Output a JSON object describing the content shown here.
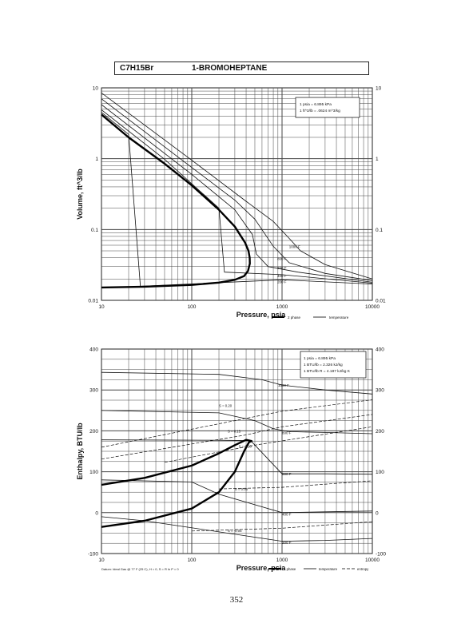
{
  "header": {
    "formula": "C7H15Br",
    "name": "1-BROMOHEPTANE"
  },
  "page_number": "352",
  "chart_data": [
    {
      "type": "line",
      "chart_id": "volume",
      "xlabel": "Pressure,  psia",
      "ylabel": "Volume, ft^3/lb",
      "xscale": "log",
      "yscale": "log",
      "xlim": [
        10,
        10000
      ],
      "ylim": [
        0.01,
        10
      ],
      "grid": true,
      "x_ticks": [
        "10",
        "100",
        "1000",
        "10000"
      ],
      "y_ticks": [
        "0.01",
        "0.1",
        "1",
        "10"
      ],
      "info_box": [
        "1 psia = 6.895 kPa",
        "1 ft^3/lb = .0624 m^3/kg"
      ],
      "legend": {
        "placement": "bottom-right",
        "items": [
          "2 phase",
          "temperature"
        ]
      },
      "dome": [
        [
          10,
          0.0152
        ],
        [
          30,
          0.0156
        ],
        [
          100,
          0.0165
        ],
        [
          200,
          0.0178
        ],
        [
          300,
          0.0195
        ],
        [
          380,
          0.022
        ],
        [
          420,
          0.026
        ],
        [
          440,
          0.033
        ],
        [
          438,
          0.04
        ],
        [
          425,
          0.05
        ],
        [
          390,
          0.065
        ],
        [
          300,
          0.11
        ],
        [
          200,
          0.19
        ],
        [
          100,
          0.42
        ],
        [
          50,
          0.85
        ],
        [
          20,
          2.0
        ],
        [
          10,
          4.2
        ]
      ],
      "isotherms": [
        {
          "name": "1000 F",
          "points": [
            [
              10,
              8.5
            ],
            [
              100,
              0.95
            ],
            [
              400,
              0.25
            ],
            [
              800,
              0.13
            ],
            [
              1200,
              0.075
            ],
            [
              1600,
              0.05
            ],
            [
              3000,
              0.032
            ],
            [
              10000,
              0.02
            ]
          ]
        },
        {
          "name": "800 F",
          "points": [
            [
              10,
              7.0
            ],
            [
              100,
              0.75
            ],
            [
              300,
              0.26
            ],
            [
              500,
              0.14
            ],
            [
              800,
              0.058
            ],
            [
              1200,
              0.034
            ],
            [
              3000,
              0.024
            ],
            [
              10000,
              0.019
            ]
          ]
        },
        {
          "name": "600 F",
          "points": [
            [
              10,
              5.8
            ],
            [
              100,
              0.6
            ],
            [
              300,
              0.19
            ],
            [
              470,
              0.085
            ],
            [
              520,
              0.045
            ],
            [
              700,
              0.03
            ],
            [
              1500,
              0.025
            ],
            [
              10000,
              0.018
            ]
          ]
        },
        {
          "name": "400 F",
          "points": [
            [
              10,
              4.9
            ],
            [
              50,
              0.98
            ],
            [
              200,
              0.2
            ],
            [
              230,
              0.025
            ],
            [
              1000,
              0.023
            ],
            [
              10000,
              0.0175
            ]
          ]
        },
        {
          "name": "200 F",
          "points": [
            [
              10,
              4.5
            ],
            [
              20,
              2.2
            ],
            [
              27,
              0.0158
            ],
            [
              1000,
              0.0195
            ],
            [
              10000,
              0.017
            ]
          ]
        }
      ]
    },
    {
      "type": "line",
      "chart_id": "enthalpy",
      "xlabel": "Pressure,  psia",
      "ylabel": "Enthalpy, BTU/lb",
      "xscale": "log",
      "xlim": [
        10,
        10000
      ],
      "ylim": [
        -100,
        400
      ],
      "grid": true,
      "x_ticks": [
        "10",
        "100",
        "1000",
        "10000"
      ],
      "y_ticks": [
        "-100",
        "0",
        "100",
        "200",
        "300",
        "400"
      ],
      "info_box": [
        "1 psia = 6.895 kPa",
        "1 BTU/lb = 2.326 kJ/kg",
        "1 BTU/lb R = 4.187 kJ/kg K"
      ],
      "datum_note": "Datum: Ideal Gas @ 77 F (25 C), H = 0, S = R ln P = 0",
      "legend": {
        "placement": "bottom-right",
        "items": [
          "2 phase",
          "temperature",
          "entropy"
        ]
      },
      "dome": [
        [
          10,
          -35
        ],
        [
          30,
          -20
        ],
        [
          100,
          10
        ],
        [
          200,
          50
        ],
        [
          300,
          100
        ],
        [
          380,
          150
        ],
        [
          430,
          172
        ],
        [
          460,
          175
        ],
        [
          400,
          178
        ],
        [
          300,
          165
        ],
        [
          200,
          145
        ],
        [
          100,
          115
        ],
        [
          30,
          85
        ],
        [
          10,
          68
        ]
      ],
      "isotherms": [
        {
          "name": "1000 F",
          "points": [
            [
              10,
              343
            ],
            [
              200,
              338
            ],
            [
              600,
              325
            ],
            [
              1000,
              312
            ],
            [
              3000,
              300
            ],
            [
              10000,
              290
            ]
          ]
        },
        {
          "name": "800 F",
          "points": [
            [
              10,
              250
            ],
            [
              200,
              244
            ],
            [
              500,
              225
            ],
            [
              800,
              205
            ],
            [
              1200,
              198
            ],
            [
              3000,
              196
            ],
            [
              10000,
              193
            ]
          ]
        },
        {
          "name": "600 F",
          "points": [
            [
              10,
              178
            ],
            [
              200,
              177
            ],
            [
              450,
              176
            ],
            [
              1000,
              95
            ],
            [
              3000,
              95
            ],
            [
              10000,
              94
            ]
          ]
        },
        {
          "name": "400 F",
          "points": [
            [
              10,
              80
            ],
            [
              100,
              75
            ],
            [
              200,
              45
            ],
            [
              1000,
              0
            ],
            [
              3000,
              2
            ],
            [
              10000,
              4
            ]
          ]
        },
        {
          "name": "200 F",
          "points": [
            [
              10,
              -10
            ],
            [
              30,
              -20
            ],
            [
              1000,
              -70
            ],
            [
              3000,
              -68
            ],
            [
              10000,
              -63
            ]
          ]
        }
      ],
      "entropy_lines": [
        {
          "name": "S = 0.20",
          "points": [
            [
              10,
              160
            ],
            [
              300,
              225
            ],
            [
              1000,
              248
            ],
            [
              10000,
              276
            ]
          ]
        },
        {
          "name": "S = 0.15",
          "points": [
            [
              10,
              131
            ],
            [
              400,
              190
            ],
            [
              1000,
              210
            ],
            [
              10000,
              240
            ]
          ]
        },
        {
          "name": "S = 0.10",
          "points": [
            [
              50,
              123
            ],
            [
              500,
              165
            ],
            [
              10000,
              210
            ]
          ]
        },
        {
          "name": "S = 0.05",
          "points": [
            [
              200,
              58
            ],
            [
              1000,
              62
            ],
            [
              10000,
              78
            ]
          ]
        },
        {
          "name": "S = -0.05",
          "points": [
            [
              100,
              -45
            ],
            [
              1000,
              -38
            ],
            [
              10000,
              -22
            ]
          ]
        }
      ]
    }
  ]
}
